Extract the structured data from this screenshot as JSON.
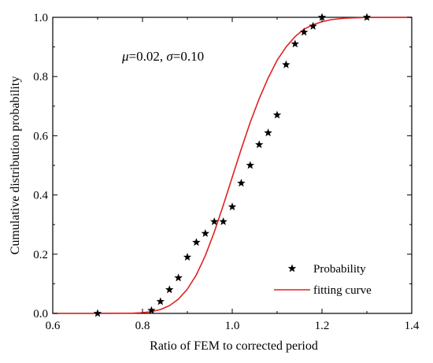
{
  "chart_data": {
    "type": "scatter",
    "xlabel": "Ratio of FEM to corrected period",
    "ylabel": "Cumulative distribution probability",
    "xlim": [
      0.6,
      1.4
    ],
    "ylim": [
      0.0,
      1.0
    ],
    "xticks": [
      0.6,
      0.8,
      1.0,
      1.2,
      1.4
    ],
    "yticks": [
      0.0,
      0.2,
      0.4,
      0.6,
      0.8,
      1.0
    ],
    "xtick_labels": [
      "0.6",
      "0.8",
      "1.0",
      "1.2",
      "1.4"
    ],
    "ytick_labels": [
      "0.0",
      "0.2",
      "0.4",
      "0.6",
      "0.8",
      "1.0"
    ],
    "annotation": {
      "mu_symbol": "μ",
      "mu_text": "=0.02, ",
      "sigma_symbol": "σ",
      "sigma_text": "=0.10"
    },
    "legend_position": "bottom-right",
    "series": [
      {
        "name": "Probability",
        "kind": "scatter",
        "marker": "star",
        "color": "#000000",
        "x": [
          0.7,
          0.82,
          0.84,
          0.86,
          0.88,
          0.9,
          0.92,
          0.94,
          0.96,
          0.98,
          1.0,
          1.02,
          1.04,
          1.06,
          1.08,
          1.1,
          1.12,
          1.14,
          1.16,
          1.18,
          1.2,
          1.3
        ],
        "y": [
          0.0,
          0.01,
          0.04,
          0.08,
          0.12,
          0.19,
          0.24,
          0.27,
          0.31,
          0.31,
          0.36,
          0.44,
          0.5,
          0.57,
          0.61,
          0.67,
          0.84,
          0.91,
          0.95,
          0.97,
          1.0,
          1.0
        ]
      },
      {
        "name": "fitting curve",
        "kind": "line",
        "color": "#e02020",
        "x": [
          0.6,
          0.7,
          0.78,
          0.8,
          0.82,
          0.84,
          0.86,
          0.88,
          0.9,
          0.92,
          0.94,
          0.96,
          0.98,
          1.0,
          1.02,
          1.04,
          1.06,
          1.08,
          1.1,
          1.12,
          1.14,
          1.16,
          1.18,
          1.2,
          1.22,
          1.25,
          1.3,
          1.4
        ],
        "y": [
          0.0,
          0.0,
          0.001,
          0.0025,
          0.006,
          0.013,
          0.026,
          0.048,
          0.082,
          0.13,
          0.195,
          0.275,
          0.365,
          0.46,
          0.555,
          0.645,
          0.725,
          0.795,
          0.855,
          0.9,
          0.935,
          0.96,
          0.975,
          0.985,
          0.992,
          0.997,
          0.9995,
          1.0
        ]
      }
    ]
  }
}
